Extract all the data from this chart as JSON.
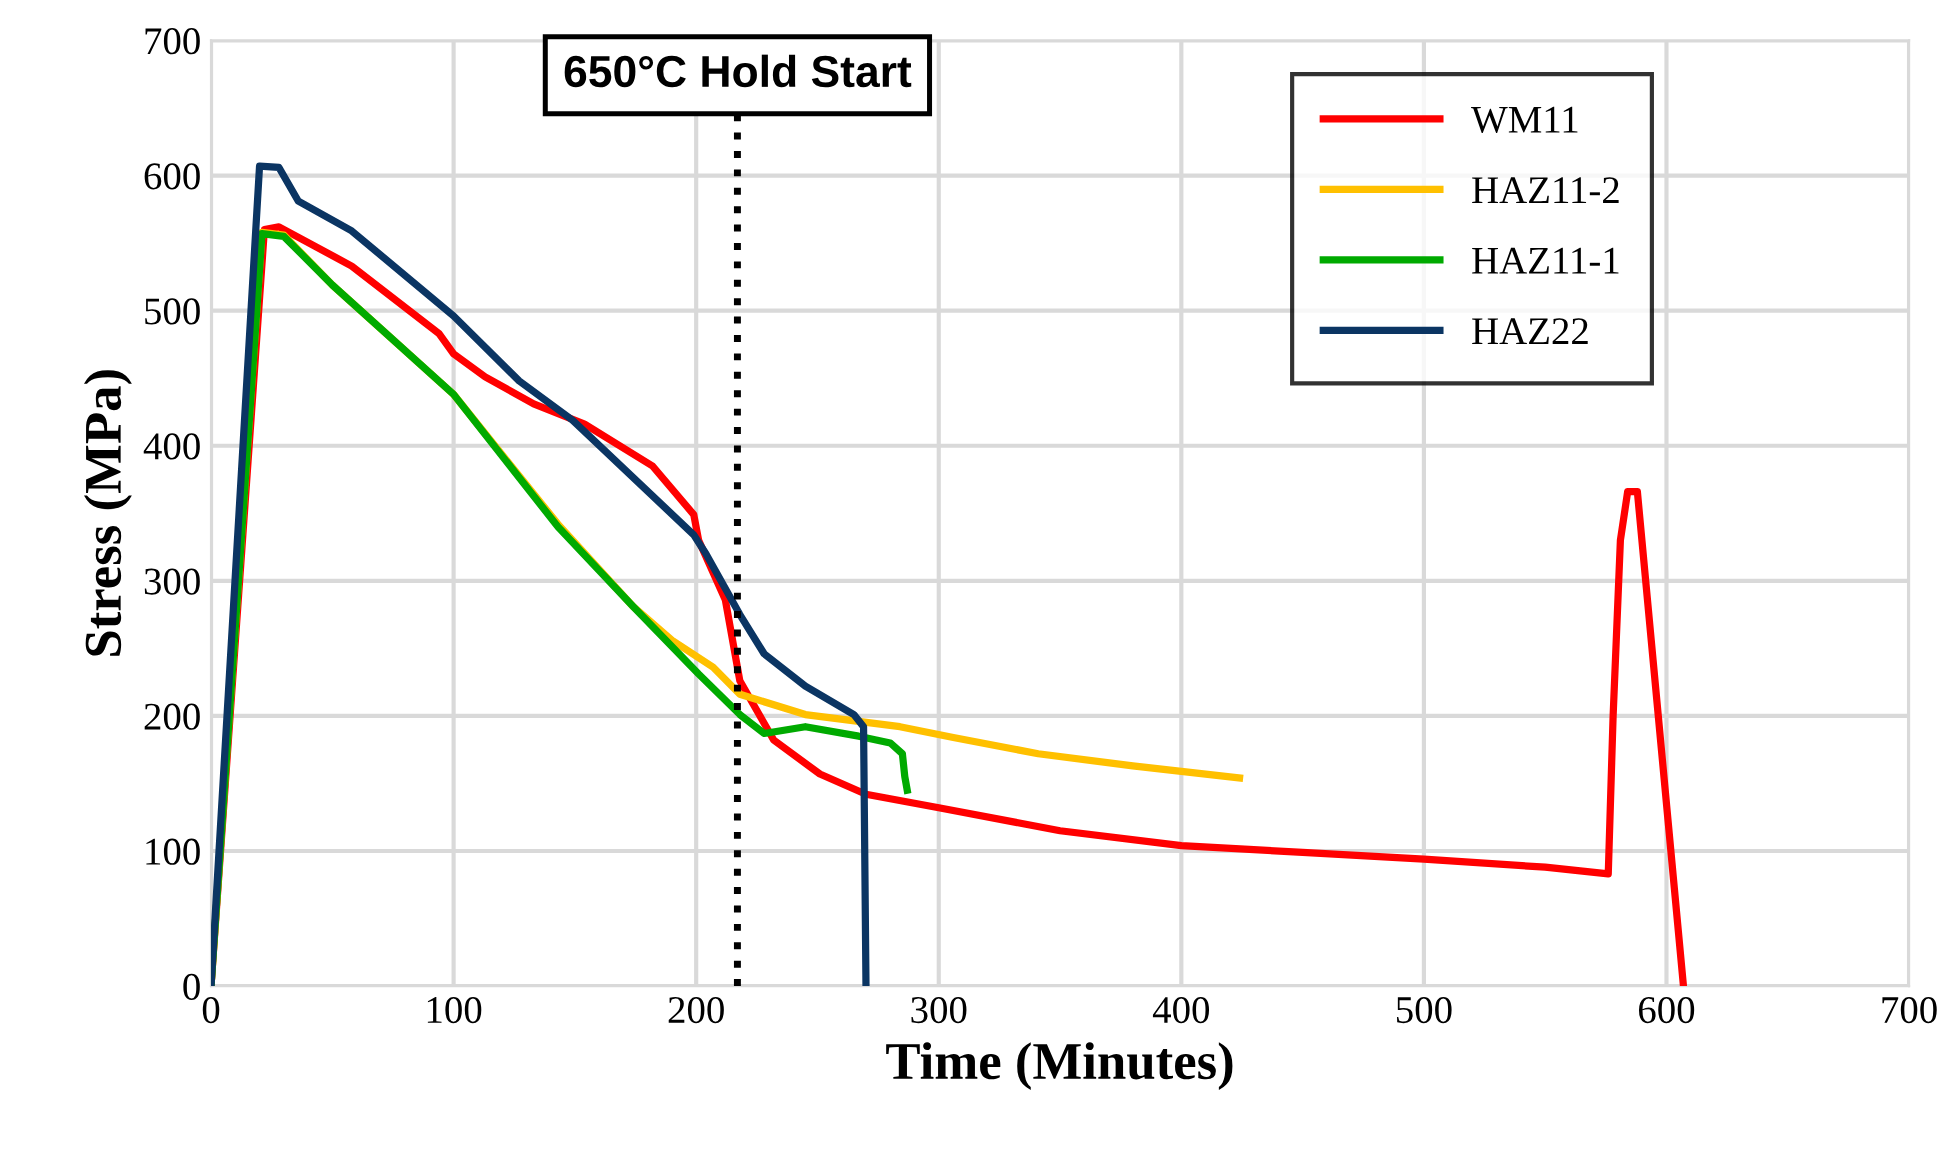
{
  "chart_data": {
    "type": "line",
    "xlabel": "Time (Minutes)",
    "ylabel": "Stress (MPa)",
    "xlim": [
      0,
      700
    ],
    "ylim": [
      0,
      700
    ],
    "xticks": [
      0,
      100,
      200,
      300,
      400,
      500,
      600,
      700
    ],
    "yticks": [
      0,
      100,
      200,
      300,
      400,
      500,
      600,
      700
    ],
    "grid": true,
    "legend": "top right",
    "marker": "none",
    "line_style": "solid",
    "series": [
      {
        "name": "WM11",
        "color": "#ff0000",
        "x": [
          0,
          22,
          28,
          58,
          94,
          100,
          113,
          133,
          154,
          182,
          199,
          201,
          212,
          218,
          232,
          251,
          270,
          300,
          350,
          400,
          450,
          500,
          550,
          576,
          578,
          581,
          584,
          588,
          607
        ],
        "values": [
          0,
          560,
          562,
          533,
          483,
          468,
          451,
          431,
          416,
          385,
          349,
          330,
          286,
          226,
          182,
          157,
          142,
          132,
          115,
          104,
          99,
          94,
          88,
          83,
          200,
          330,
          366,
          366,
          0
        ]
      },
      {
        "name": "HAZ11-2",
        "color": "#ffc000",
        "x": [
          0,
          21,
          30,
          50,
          100,
          143,
          174,
          190,
          207,
          218,
          245,
          284,
          306,
          341,
          380,
          424
        ],
        "values": [
          0,
          558,
          556,
          519,
          438,
          342,
          281,
          256,
          236,
          216,
          201,
          192,
          184,
          172,
          163,
          154
        ]
      },
      {
        "name": "HAZ11-1",
        "color": "#00aa00",
        "x": [
          0,
          21,
          30,
          50,
          100,
          143,
          174,
          201,
          218,
          228,
          245,
          267,
          280,
          285,
          286,
          287
        ],
        "values": [
          0,
          557,
          555,
          519,
          438,
          340,
          281,
          231,
          201,
          187,
          192,
          185,
          180,
          172,
          155,
          145
        ]
      },
      {
        "name": "HAZ22",
        "color": "#0b3563",
        "x": [
          0,
          20,
          28,
          36,
          58,
          100,
          127,
          149,
          199,
          204,
          218,
          228,
          245,
          265,
          269,
          270
        ],
        "values": [
          0,
          607,
          606,
          581,
          559,
          496,
          448,
          419,
          334,
          320,
          275,
          246,
          222,
          201,
          192,
          1
        ]
      }
    ],
    "ref_lines": [
      {
        "axis": "x",
        "value": 217,
        "label": "650°C Hold Start",
        "color": "#000000",
        "line_style": "dotted"
      }
    ]
  }
}
